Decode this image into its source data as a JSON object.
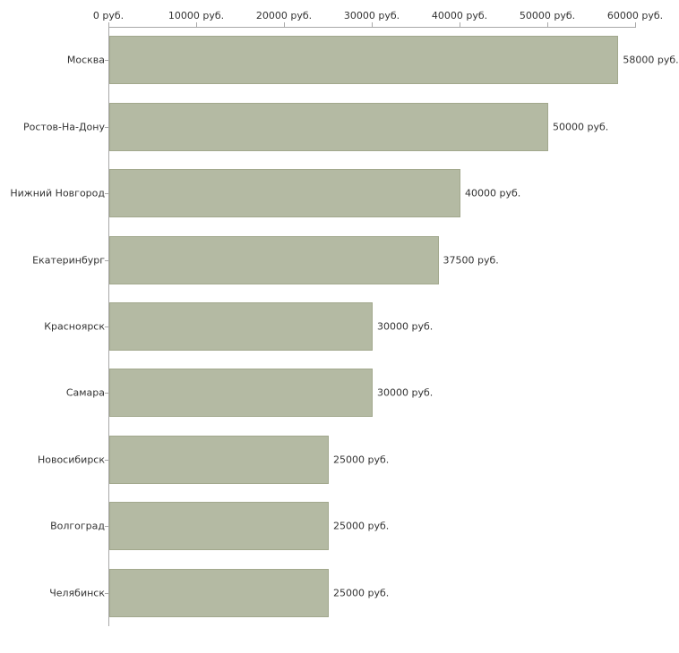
{
  "chart_data": {
    "type": "bar",
    "orientation": "horizontal",
    "title": "",
    "xlabel": "",
    "ylabel": "",
    "categories": [
      "Москва",
      "Ростов-На-Дону",
      "Нижний Новгород",
      "Екатеринбург",
      "Красноярск",
      "Самара",
      "Новосибирск",
      "Волгоград",
      "Челябинск"
    ],
    "values": [
      58000,
      50000,
      40000,
      37500,
      30000,
      30000,
      25000,
      25000,
      25000
    ],
    "value_labels": [
      "58000 руб.",
      "50000 руб.",
      "40000 руб.",
      "37500 руб.",
      "30000 руб.",
      "30000 руб.",
      "25000 руб.",
      "25000 руб.",
      "25000 руб."
    ],
    "x_ticks": [
      0,
      10000,
      20000,
      30000,
      40000,
      50000,
      60000
    ],
    "x_tick_labels": [
      "0 руб.",
      "10000 руб.",
      "20000 руб.",
      "30000 руб.",
      "40000 руб.",
      "50000 руб.",
      "60000 руб."
    ],
    "xlim": [
      0,
      60000
    ],
    "grid": false,
    "legend": false,
    "colors": {
      "bar_fill": "#b4baa3",
      "bar_border": "#a2a88d",
      "axis": "#a8a8a8",
      "text": "#333333",
      "background": "#ffffff"
    }
  }
}
